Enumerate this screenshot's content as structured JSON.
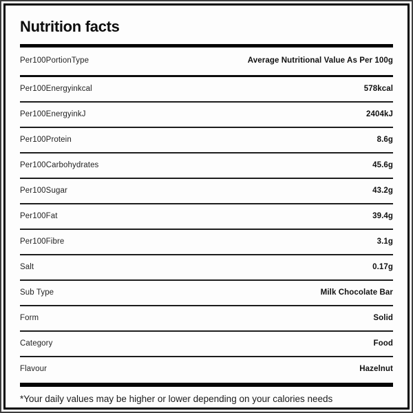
{
  "label": {
    "title": "Nutrition facts",
    "header_row": {
      "label": "Per100PortionType",
      "value": "Average Nutritional Value As Per 100g"
    },
    "rows": [
      {
        "label": "Per100Energyinkcal",
        "value": "578kcal"
      },
      {
        "label": "Per100EnergyinkJ",
        "value": "2404kJ"
      },
      {
        "label": "Per100Protein",
        "value": "8.6g"
      },
      {
        "label": "Per100Carbohydrates",
        "value": "45.6g"
      },
      {
        "label": "Per100Sugar",
        "value": "43.2g"
      },
      {
        "label": "Per100Fat",
        "value": "39.4g"
      },
      {
        "label": "Per100Fibre",
        "value": "3.1g"
      },
      {
        "label": "Salt",
        "value": "0.17g"
      },
      {
        "label": "Sub Type",
        "value": "Milk Chocolate Bar"
      },
      {
        "label": "Form",
        "value": "Solid"
      },
      {
        "label": "Category",
        "value": "Food"
      },
      {
        "label": "Flavour",
        "value": "Hazelnut"
      }
    ],
    "footnote": "*Your daily values may be higher or lower depending on your calories needs",
    "colors": {
      "border": "#000000",
      "separator": "#1c1c1c",
      "thick_bar": "#050505",
      "background": "#fdfdfd"
    }
  }
}
